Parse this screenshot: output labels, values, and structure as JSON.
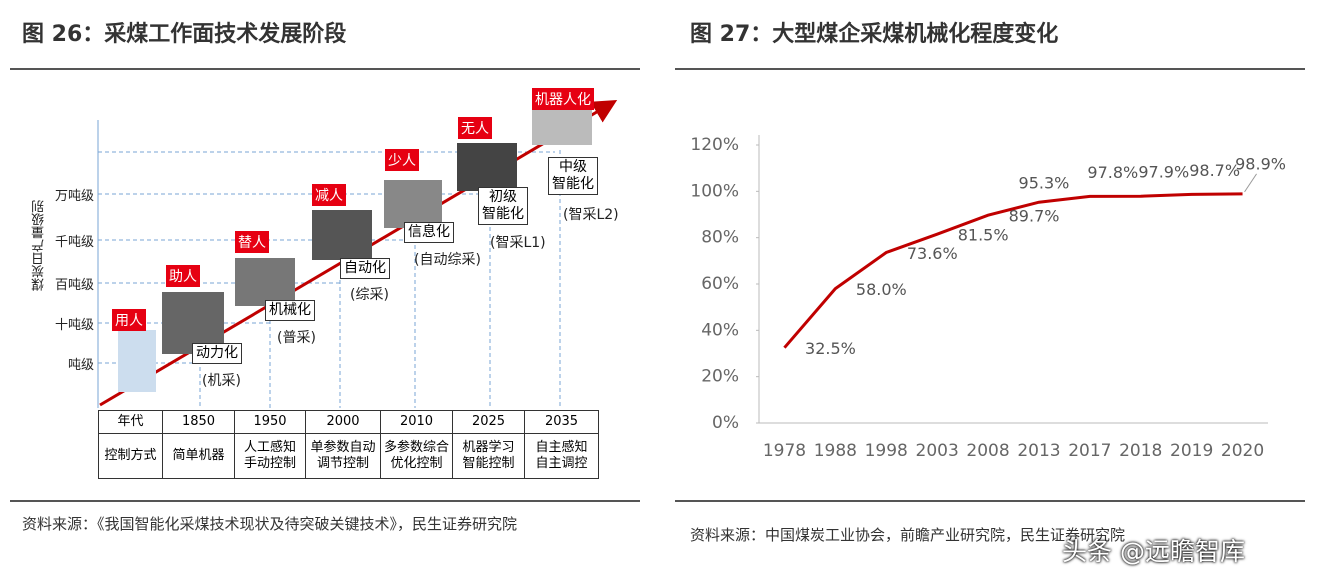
{
  "figure26": {
    "title": "图 26：采煤工作面技术发展阶段",
    "y_axis_label": "煤炭日产量级别",
    "levels": [
      "万吨级",
      "千吨级",
      "百吨级",
      "十吨级",
      "吨级"
    ],
    "tags": [
      "用人",
      "助人",
      "替人",
      "减人",
      "少人",
      "无人",
      "机器人化"
    ],
    "stages": [
      {
        "name": "动力化",
        "mode": "(机采)"
      },
      {
        "name": "机械化",
        "mode": "(普采)"
      },
      {
        "name": "自动化",
        "mode": "(综采)"
      },
      {
        "name": "信息化",
        "mode": "(自动综采)"
      },
      {
        "name": [
          "初级",
          "智能化"
        ],
        "mode": "(智采L1)"
      },
      {
        "name": [
          "中级",
          "智能化"
        ],
        "mode": "(智采L2)"
      }
    ],
    "table": {
      "rows": [
        [
          [
            "年代"
          ],
          [
            "1850"
          ],
          [
            "1950"
          ],
          [
            "2000"
          ],
          [
            "2010"
          ],
          [
            "2025"
          ],
          [
            "2035"
          ]
        ],
        [
          [
            "控制方式"
          ],
          [
            "简单机器"
          ],
          [
            "人工感知",
            "手动控制"
          ],
          [
            "单参数自动",
            "调节控制"
          ],
          [
            "多参数综合",
            "优化控制"
          ],
          [
            "机器学习",
            "智能控制"
          ],
          [
            "自主感知",
            "自主调控"
          ]
        ]
      ]
    },
    "source": "资料来源：《我国智能化采煤技术现状及待突破关键技术》，民生证券研究院"
  },
  "chart_data": {
    "type": "line",
    "title": "图 27：大型煤企采煤机械化程度变化",
    "categories": [
      "1978",
      "1988",
      "1998",
      "2003",
      "2008",
      "2013",
      "2017",
      "2018",
      "2019",
      "2020"
    ],
    "values": [
      32.5,
      58.0,
      73.6,
      81.5,
      89.7,
      95.3,
      97.8,
      97.9,
      98.7,
      98.9
    ],
    "value_labels": [
      "32.5%",
      "58.0%",
      "73.6%",
      "81.5%",
      "89.7%",
      "95.3%",
      "97.8%",
      "97.9%",
      "98.7%",
      "98.9%"
    ],
    "color": "#c00000",
    "ylim": [
      0,
      120
    ],
    "yticks": [
      {
        "value": 0,
        "label": "0%"
      },
      {
        "value": 20,
        "label": "20%"
      },
      {
        "value": 40,
        "label": "40%"
      },
      {
        "value": 60,
        "label": "60%"
      },
      {
        "value": 80,
        "label": "80%"
      },
      {
        "value": 100,
        "label": "100%"
      },
      {
        "value": 120,
        "label": "120%"
      }
    ],
    "source": "资料来源：中国煤炭工业协会，前瞻产业研究院，民生证券研究院"
  },
  "watermark": "头条 @远瞻智库"
}
